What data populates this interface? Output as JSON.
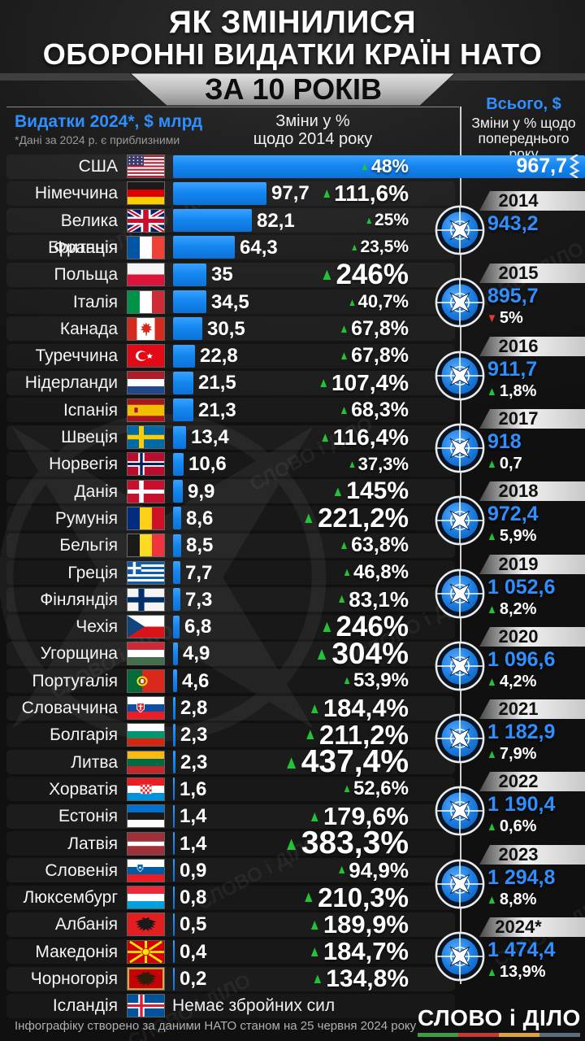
{
  "title": {
    "line1": "ЯК ЗМІНИЛИСЯ",
    "line2": "ОБОРОННІ ВИДАТКИ КРАЇН НАТО",
    "banner": "ЗА 10 РОКІВ"
  },
  "columns": {
    "left_title": "Видатки 2024*, $ млрд",
    "left_note": "*Дані за 2024 р. є приблизними",
    "mid_line1": "Зміни у %",
    "mid_line2": "щодо 2014 року",
    "right_title": "Всього, $",
    "right_line1": "Зміни у % щодо",
    "right_line2": "попереднього року"
  },
  "watermark": "СЛОВО і ДІЛО",
  "colors": {
    "bar_blue": "#1487f0",
    "accent_blue": "#2f8fff",
    "up_green": "#22c437",
    "down_red": "#e23b2e",
    "underline_colors": [
      "#3f9b44",
      "#c63831",
      "#dba43c",
      "#5b6c7c"
    ]
  },
  "countries": [
    {
      "name": "США",
      "flag": "usa",
      "value": "967,7",
      "value_num": 967.7,
      "pct": "48%",
      "pct_num": 48,
      "bar_full": true
    },
    {
      "name": "Німеччина",
      "flag": "germany",
      "value": "97,7",
      "value_num": 97.7,
      "pct": "111,6%",
      "pct_num": 111.6
    },
    {
      "name": "Велика Британія",
      "flag": "uk",
      "value": "82,1",
      "value_num": 82.1,
      "pct": "25%",
      "pct_num": 25
    },
    {
      "name": "Франція",
      "flag": "france",
      "value": "64,3",
      "value_num": 64.3,
      "pct": "23,5%",
      "pct_num": 23.5
    },
    {
      "name": "Польща",
      "flag": "poland",
      "value": "35",
      "value_num": 35,
      "pct": "246%",
      "pct_num": 246
    },
    {
      "name": "Італія",
      "flag": "italy",
      "value": "34,5",
      "value_num": 34.5,
      "pct": "40,7%",
      "pct_num": 40.7
    },
    {
      "name": "Канада",
      "flag": "canada",
      "value": "30,5",
      "value_num": 30.5,
      "pct": "67,8%",
      "pct_num": 67.8
    },
    {
      "name": "Туреччина",
      "flag": "turkey",
      "value": "22,8",
      "value_num": 22.8,
      "pct": "67,8%",
      "pct_num": 67.8
    },
    {
      "name": "Нідерланди",
      "flag": "netherlands",
      "value": "21,5",
      "value_num": 21.5,
      "pct": "107,4%",
      "pct_num": 107.4
    },
    {
      "name": "Іспанія",
      "flag": "spain",
      "value": "21,3",
      "value_num": 21.3,
      "pct": "68,3%",
      "pct_num": 68.3
    },
    {
      "name": "Швеція",
      "flag": "sweden",
      "value": "13,4",
      "value_num": 13.4,
      "pct": "116,4%",
      "pct_num": 116.4
    },
    {
      "name": "Норвегія",
      "flag": "norway",
      "value": "10,6",
      "value_num": 10.6,
      "pct": "37,3%",
      "pct_num": 37.3
    },
    {
      "name": "Данія",
      "flag": "denmark",
      "value": "9,9",
      "value_num": 9.9,
      "pct": "145%",
      "pct_num": 145
    },
    {
      "name": "Румунія",
      "flag": "romania",
      "value": "8,6",
      "value_num": 8.6,
      "pct": "221,2%",
      "pct_num": 221.2
    },
    {
      "name": "Бельгія",
      "flag": "belgium",
      "value": "8,5",
      "value_num": 8.5,
      "pct": "63,8%",
      "pct_num": 63.8
    },
    {
      "name": "Греція",
      "flag": "greece",
      "value": "7,7",
      "value_num": 7.7,
      "pct": "46,8%",
      "pct_num": 46.8
    },
    {
      "name": "Фінляндія",
      "flag": "finland",
      "value": "7,3",
      "value_num": 7.3,
      "pct": "83,1%",
      "pct_num": 83.1
    },
    {
      "name": "Чехія",
      "flag": "czechia",
      "value": "6,8",
      "value_num": 6.8,
      "pct": "246%",
      "pct_num": 246
    },
    {
      "name": "Угорщина",
      "flag": "hungary",
      "value": "4,9",
      "value_num": 4.9,
      "pct": "304%",
      "pct_num": 304
    },
    {
      "name": "Португалія",
      "flag": "portugal",
      "value": "4,6",
      "value_num": 4.6,
      "pct": "53,9%",
      "pct_num": 53.9
    },
    {
      "name": "Словаччина",
      "flag": "slovakia",
      "value": "2,8",
      "value_num": 2.8,
      "pct": "184,4%",
      "pct_num": 184.4
    },
    {
      "name": "Болгарія",
      "flag": "bulgaria",
      "value": "2,3",
      "value_num": 2.3,
      "pct": "211,2%",
      "pct_num": 211.2
    },
    {
      "name": "Литва",
      "flag": "lithuania",
      "value": "2,3",
      "value_num": 2.3,
      "pct": "437,4%",
      "pct_num": 437.4
    },
    {
      "name": "Хорватія",
      "flag": "croatia",
      "value": "1,6",
      "value_num": 1.6,
      "pct": "52,6%",
      "pct_num": 52.6
    },
    {
      "name": "Естонія",
      "flag": "estonia",
      "value": "1,4",
      "value_num": 1.4,
      "pct": "179,6%",
      "pct_num": 179.6
    },
    {
      "name": "Латвія",
      "flag": "latvia",
      "value": "1,4",
      "value_num": 1.4,
      "pct": "383,3%",
      "pct_num": 383.3
    },
    {
      "name": "Словенія",
      "flag": "slovenia",
      "value": "0,9",
      "value_num": 0.9,
      "pct": "94,9%",
      "pct_num": 94.9
    },
    {
      "name": "Люксембург",
      "flag": "luxembourg",
      "value": "0,8",
      "value_num": 0.8,
      "pct": "210,3%",
      "pct_num": 210.3
    },
    {
      "name": "Албанія",
      "flag": "albania",
      "value": "0,5",
      "value_num": 0.5,
      "pct": "189,9%",
      "pct_num": 189.9
    },
    {
      "name": "Македонія",
      "flag": "macedonia",
      "value": "0,4",
      "value_num": 0.4,
      "pct": "184,7%",
      "pct_num": 184.7
    },
    {
      "name": "Чорногорія",
      "flag": "montenegro",
      "value": "0,2",
      "value_num": 0.2,
      "pct": "134,8%",
      "pct_num": 134.8
    },
    {
      "name": "Ісландія",
      "flag": "iceland",
      "note": "Немає збройних сил"
    }
  ],
  "timeline": [
    {
      "year": "2014",
      "total": "943,2"
    },
    {
      "year": "2015",
      "total": "895,7",
      "change": "5%",
      "dir": "down"
    },
    {
      "year": "2016",
      "total": "911,7",
      "change": "1,8%",
      "dir": "up"
    },
    {
      "year": "2017",
      "total": "918",
      "change": "0,7",
      "dir": "up"
    },
    {
      "year": "2018",
      "total": "972,4",
      "change": "5,9%",
      "dir": "up"
    },
    {
      "year": "2019",
      "total": "1 052,6",
      "change": "8,2%",
      "dir": "up"
    },
    {
      "year": "2020",
      "total": "1 096,6",
      "change": "4,2%",
      "dir": "up"
    },
    {
      "year": "2021",
      "total": "1 182,9",
      "change": "7,9%",
      "dir": "up"
    },
    {
      "year": "2022",
      "total": "1 190,4",
      "change": "0,6%",
      "dir": "up"
    },
    {
      "year": "2023",
      "total": "1 294,8",
      "change": "8,8%",
      "dir": "up"
    },
    {
      "year": "2024*",
      "total": "1 474,4",
      "change": "13,9%",
      "dir": "up"
    }
  ],
  "footer": {
    "source": "Інфографіку створено за даними НАТО станом на 25 червня 2024 року",
    "logo": "СЛОВО і ДІЛО"
  },
  "chart_data": [
    {
      "type": "bar",
      "title": "Видатки 2024*, $ млрд",
      "categories": [
        "США",
        "Німеччина",
        "Велика Британія",
        "Франція",
        "Польща",
        "Італія",
        "Канада",
        "Туреччина",
        "Нідерланди",
        "Іспанія",
        "Швеція",
        "Норвегія",
        "Данія",
        "Румунія",
        "Бельгія",
        "Греція",
        "Фінляндія",
        "Чехія",
        "Угорщина",
        "Португалія",
        "Словаччина",
        "Болгарія",
        "Литва",
        "Хорватія",
        "Естонія",
        "Латвія",
        "Словенія",
        "Люксембург",
        "Албанія",
        "Македонія",
        "Чорногорія"
      ],
      "values": [
        967.7,
        97.7,
        82.1,
        64.3,
        35,
        34.5,
        30.5,
        22.8,
        21.5,
        21.3,
        13.4,
        10.6,
        9.9,
        8.6,
        8.5,
        7.7,
        7.3,
        6.8,
        4.9,
        4.6,
        2.8,
        2.3,
        2.3,
        1.6,
        1.4,
        1.4,
        0.9,
        0.8,
        0.5,
        0.4,
        0.2
      ],
      "pct_change_vs_2014": [
        48,
        111.6,
        25,
        23.5,
        246,
        40.7,
        67.8,
        67.8,
        107.4,
        68.3,
        116.4,
        37.3,
        145,
        221.2,
        63.8,
        46.8,
        83.1,
        246,
        304,
        53.9,
        184.4,
        211.2,
        437.4,
        52.6,
        179.6,
        383.3,
        94.9,
        210.3,
        189.9,
        184.7,
        134.8
      ],
      "xlabel": "",
      "ylabel": "Зміни у % щодо 2014 року",
      "note": "Ісландія — Немає збройних сил"
    },
    {
      "type": "line",
      "title": "Всього, $ — Зміни у % щодо попереднього року",
      "x": [
        "2014",
        "2015",
        "2016",
        "2017",
        "2018",
        "2019",
        "2020",
        "2021",
        "2022",
        "2023",
        "2024*"
      ],
      "values": [
        943.2,
        895.7,
        911.7,
        918,
        972.4,
        1052.6,
        1096.6,
        1182.9,
        1190.4,
        1294.8,
        1474.4
      ],
      "pct_change_prev_year": [
        null,
        -5,
        1.8,
        0.7,
        5.9,
        8.2,
        4.2,
        7.9,
        0.6,
        8.8,
        13.9
      ]
    }
  ]
}
